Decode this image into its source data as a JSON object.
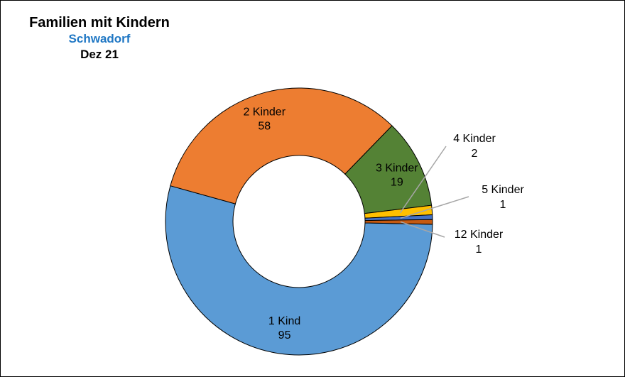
{
  "colors": {
    "title_sub": "#1F77C4"
  },
  "chart_data": {
    "type": "pie",
    "variant": "donut",
    "title": "Familien mit Kindern",
    "subtitle": "Schwadorf",
    "date_label": "Dez 21",
    "legend": "none",
    "slices": [
      {
        "label": "1 Kind",
        "value": 95,
        "color": "#5B9BD5"
      },
      {
        "label": "2 Kinder",
        "value": 58,
        "color": "#ED7D31"
      },
      {
        "label": "3 Kinder",
        "value": 19,
        "color": "#548235"
      },
      {
        "label": "4 Kinder",
        "value": 2,
        "color": "#FFC000"
      },
      {
        "label": "5 Kinder",
        "value": 1,
        "color": "#4472C4"
      },
      {
        "label": "12 Kinder",
        "value": 1,
        "color": "#C55A11"
      }
    ]
  }
}
